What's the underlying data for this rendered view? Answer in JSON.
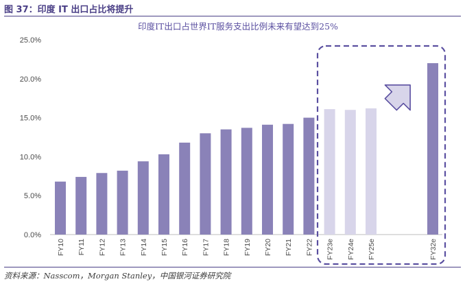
{
  "figure": {
    "title": "图 37：印度 IT 出口占比将提升",
    "source": "资料来源：Nasscom，Morgan Stanley，中国银河证券研究院"
  },
  "colors": {
    "actual_bar": "#8a82b8",
    "estimate_bar": "#d8d5ea",
    "highlight": "#5a4fa0",
    "arrow_fill": "#d8d5ea",
    "axis_text": "#4a4a4a",
    "title_text": "#5a4fa0"
  },
  "chart_data": {
    "type": "bar",
    "title": "印度IT出口占世界IT服务支出比例未来有望达到25%",
    "xlabel": "",
    "ylabel": "",
    "ylim": [
      0,
      25
    ],
    "yticks": [
      0,
      5,
      10,
      15,
      20,
      25
    ],
    "ytick_labels": [
      "0.0%",
      "5.0%",
      "10.0%",
      "15.0%",
      "20.0%",
      "25.0%"
    ],
    "categories": [
      "FY10",
      "FY11",
      "FY12",
      "FY13",
      "FY14",
      "FY15",
      "FY16",
      "FY17",
      "FY18",
      "FY19",
      "FY20",
      "FY21",
      "FY22",
      "FY23e",
      "FY24e",
      "FY25e",
      "FY32e"
    ],
    "values": [
      6.8,
      7.4,
      7.9,
      8.2,
      9.4,
      10.3,
      11.8,
      13.0,
      13.5,
      13.7,
      14.1,
      14.2,
      15.0,
      16.1,
      16.0,
      16.2,
      22.0
    ],
    "estimate_categories": [
      "FY23e",
      "FY24e",
      "FY25e"
    ],
    "grid": false,
    "legend": "none",
    "annotation": "dashed highlight box around FY23e–FY32e with upward arrow"
  }
}
